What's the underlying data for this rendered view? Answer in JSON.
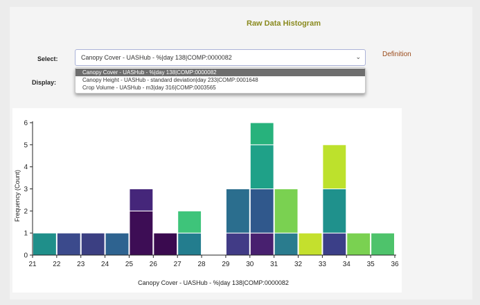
{
  "page": {
    "title": "Raw Data Histogram",
    "select_label": "Select:",
    "display_label": "Display:",
    "definition_link": "Definition",
    "selected_value": "Canopy Cover - UASHub - %|day 138|COMP:0000082",
    "dropdown_options": [
      "Canopy Cover - UASHub - %|day 138|COMP:0000082",
      "Canopy Height - UASHub - standard deviation|day 233|COMP:0001648",
      "Crop Volume - UASHub - m3|day 316|COMP:0003565"
    ],
    "chevron_icon": "chevron-down-icon"
  },
  "chart_data": {
    "type": "bar",
    "xlabel": "Canopy Cover - UASHub - %|day 138|COMP:0000082",
    "ylabel": "Frequency (Count)",
    "xlim": [
      21,
      36
    ],
    "ylim": [
      0,
      6
    ],
    "x_ticks": [
      21,
      22,
      23,
      24,
      25,
      26,
      27,
      28,
      29,
      30,
      31,
      32,
      33,
      34,
      35,
      36
    ],
    "y_ticks": [
      0,
      1,
      2,
      3,
      4,
      5,
      6
    ],
    "bins": [
      {
        "x0": 21,
        "x1": 22,
        "segments": [
          {
            "count": 1,
            "color": "#1f8f8a"
          }
        ]
      },
      {
        "x0": 22,
        "x1": 23,
        "segments": [
          {
            "count": 1,
            "color": "#3b4a8c"
          }
        ]
      },
      {
        "x0": 23,
        "x1": 24,
        "segments": [
          {
            "count": 1,
            "color": "#3b3f82"
          }
        ]
      },
      {
        "x0": 24,
        "x1": 25,
        "segments": [
          {
            "count": 1,
            "color": "#2e6390"
          }
        ]
      },
      {
        "x0": 25,
        "x1": 26,
        "segments": [
          {
            "count": 2,
            "color": "#3d0d55"
          },
          {
            "count": 1,
            "color": "#45267a"
          }
        ]
      },
      {
        "x0": 26,
        "x1": 27,
        "segments": [
          {
            "count": 1,
            "color": "#3a0a4f"
          }
        ]
      },
      {
        "x0": 27,
        "x1": 28,
        "segments": [
          {
            "count": 1,
            "color": "#237d8e"
          },
          {
            "count": 1,
            "color": "#3ec47a"
          }
        ]
      },
      {
        "x0": 29,
        "x1": 30,
        "segments": [
          {
            "count": 1,
            "color": "#413b86"
          },
          {
            "count": 2,
            "color": "#2b6e8e"
          }
        ]
      },
      {
        "x0": 30,
        "x1": 31,
        "segments": [
          {
            "count": 1,
            "color": "#48206f"
          },
          {
            "count": 2,
            "color": "#30588c"
          },
          {
            "count": 2,
            "color": "#1fa188"
          },
          {
            "count": 1,
            "color": "#27b27c"
          }
        ]
      },
      {
        "x0": 31,
        "x1": 32,
        "segments": [
          {
            "count": 1,
            "color": "#2a7c8e"
          },
          {
            "count": 2,
            "color": "#7ad151"
          }
        ]
      },
      {
        "x0": 32,
        "x1": 33,
        "segments": [
          {
            "count": 1,
            "color": "#c4e02d"
          }
        ]
      },
      {
        "x0": 33,
        "x1": 34,
        "segments": [
          {
            "count": 1,
            "color": "#3b3f88"
          },
          {
            "count": 2,
            "color": "#1f918c"
          },
          {
            "count": 2,
            "color": "#bde12c"
          }
        ]
      },
      {
        "x0": 34,
        "x1": 35,
        "segments": [
          {
            "count": 1,
            "color": "#7ad151"
          }
        ]
      },
      {
        "x0": 35,
        "x1": 36,
        "segments": [
          {
            "count": 1,
            "color": "#4ec36b"
          }
        ]
      }
    ]
  }
}
